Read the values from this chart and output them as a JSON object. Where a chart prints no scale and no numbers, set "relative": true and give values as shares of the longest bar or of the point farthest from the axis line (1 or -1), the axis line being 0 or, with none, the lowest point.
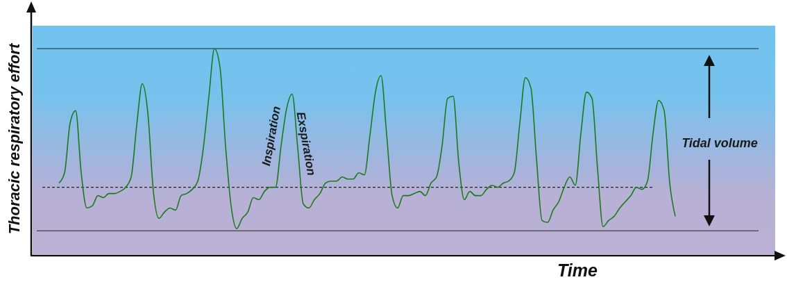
{
  "chart_data": {
    "type": "line",
    "relative": true,
    "xlabel": "Time",
    "ylabel": "Thoracic respiratory effort",
    "categories": [
      null,
      null,
      null,
      null,
      null,
      null,
      null,
      null,
      null,
      null,
      null,
      null,
      null,
      null,
      null,
      null,
      null,
      null,
      null,
      null,
      null,
      null,
      null,
      null,
      null,
      null,
      null,
      null,
      null,
      null,
      null,
      null,
      null,
      null,
      null,
      null,
      null,
      null,
      null,
      null,
      null,
      null,
      null,
      null,
      null,
      null,
      null,
      null,
      null,
      null,
      null,
      null,
      null,
      null,
      null,
      null,
      null,
      null,
      null,
      null,
      null,
      null,
      null,
      null,
      null,
      null,
      null,
      null,
      null,
      null,
      null,
      null,
      null,
      null,
      null,
      null,
      null,
      null,
      null,
      null,
      null,
      null,
      null,
      null,
      null,
      null,
      null,
      null,
      null,
      null,
      null,
      null,
      null,
      null,
      null,
      null,
      null,
      null,
      null,
      null,
      null,
      null,
      null,
      null,
      null,
      null,
      null,
      null,
      null,
      null,
      null,
      null,
      null,
      null,
      null,
      null,
      null,
      null,
      null,
      null,
      null,
      null,
      null,
      null,
      null,
      null,
      null,
      null,
      null,
      null,
      null,
      null,
      null,
      null,
      null
    ],
    "series": [
      {
        "color": "#1a7a1a",
        "values": [
          null,
          null,
          null,
          null,
          null,
          0.35,
          0.4,
          0.64,
          0.7,
          0.4,
          0.23,
          0.24,
          0.29,
          0.28,
          0.3,
          0.3,
          0.31,
          0.33,
          0.38,
          0.63,
          0.83,
          0.69,
          0.31,
          0.18,
          0.21,
          0.23,
          0.22,
          0.29,
          0.3,
          0.32,
          0.36,
          0.52,
          0.77,
          1,
          0.91,
          0.53,
          0.24,
          0.13,
          0.18,
          0.21,
          0.28,
          0.27,
          0.31,
          0.33,
          0.33,
          0.53,
          0.71,
          0.78,
          0.52,
          0.25,
          0.23,
          0.27,
          0.3,
          0.35,
          0.36,
          0.36,
          0.38,
          0.37,
          0.37,
          0.4,
          0.39,
          0.58,
          0.79,
          0.87,
          0.59,
          0.29,
          0.23,
          0.29,
          0.29,
          0.3,
          0.31,
          0.29,
          0.35,
          0.38,
          0.53,
          0.76,
          0.77,
          0.45,
          0.27,
          0.31,
          0.29,
          0.29,
          0.32,
          0.34,
          0.33,
          0.35,
          0.36,
          0.4,
          0.64,
          0.86,
          0.81,
          0.47,
          0.17,
          0.16,
          0.22,
          0.26,
          0.33,
          0.38,
          0.34,
          0.59,
          0.79,
          0.76,
          0.42,
          0.14,
          0.17,
          0.19,
          0.23,
          0.26,
          0.29,
          0.33,
          0.32,
          0.36,
          0.59,
          0.75,
          0.7,
          0.35,
          0.19,
          null,
          null,
          null,
          null,
          null,
          null,
          null,
          null,
          null,
          null,
          null,
          null,
          null,
          null,
          null,
          null,
          null,
          null
        ]
      }
    ],
    "ref_lines": [
      {
        "axis": "y",
        "value": 1,
        "color": "#222222",
        "line_style": "solid"
      },
      {
        "axis": "y",
        "value": 0.33,
        "color": "#222222",
        "line_style": "dashed"
      },
      {
        "axis": "y",
        "value": 0.12,
        "color": "#222222",
        "line_style": "solid"
      }
    ],
    "annotations": [
      "Inspiration",
      "Exspiration",
      "Tidal volume"
    ]
  }
}
